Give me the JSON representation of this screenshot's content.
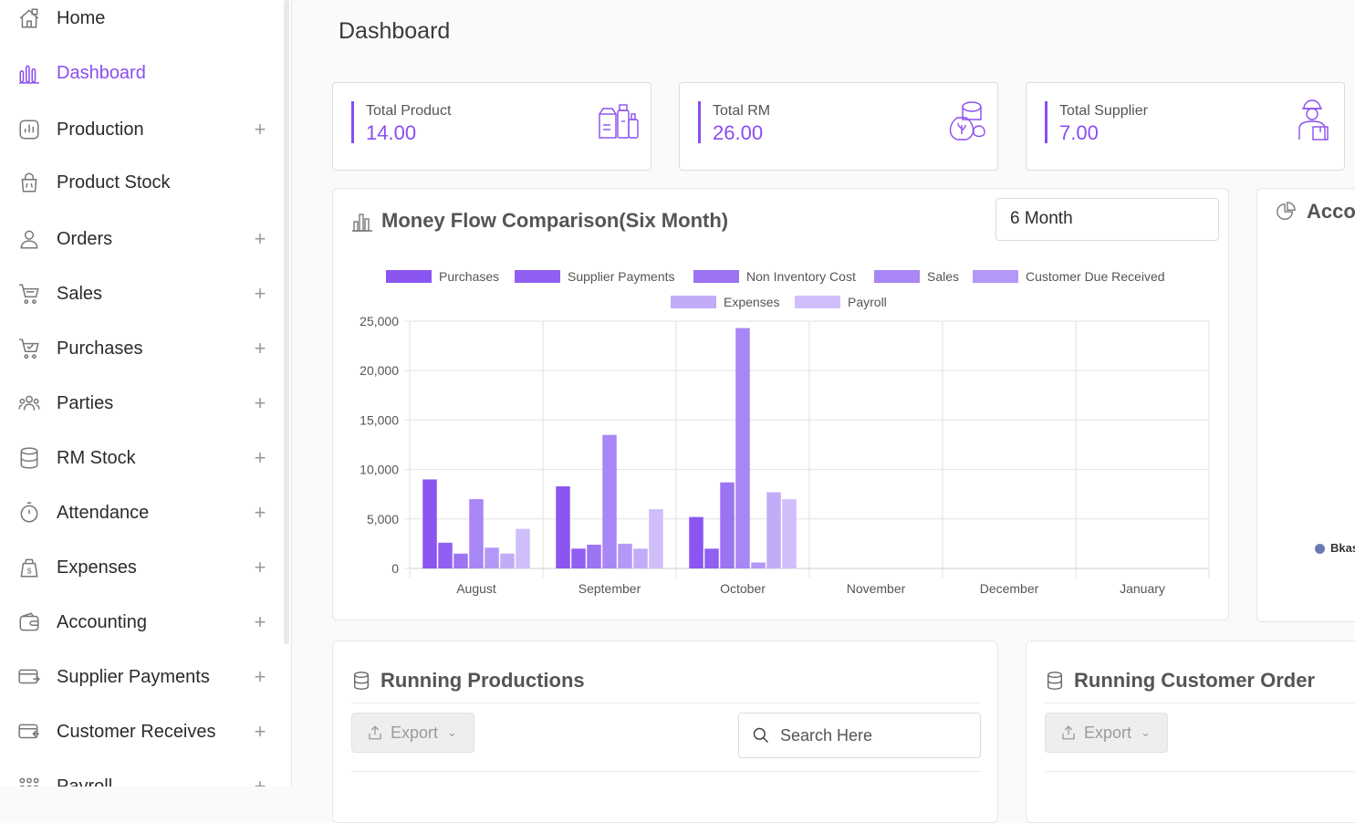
{
  "sidebar": {
    "items": [
      {
        "label": "Home",
        "icon": "home-icon",
        "expandable": false,
        "active": false
      },
      {
        "label": "Dashboard",
        "icon": "chart-icon",
        "expandable": false,
        "active": true
      },
      {
        "label": "Production",
        "icon": "production-icon",
        "expandable": true,
        "active": false
      },
      {
        "label": "Product Stock",
        "icon": "bag-icon",
        "expandable": false,
        "active": false
      },
      {
        "label": "Orders",
        "icon": "user-icon",
        "expandable": true,
        "active": false
      },
      {
        "label": "Sales",
        "icon": "cart-icon",
        "expandable": true,
        "active": false
      },
      {
        "label": "Purchases",
        "icon": "cart-check-icon",
        "expandable": true,
        "active": false
      },
      {
        "label": "Parties",
        "icon": "group-icon",
        "expandable": true,
        "active": false
      },
      {
        "label": "RM Stock",
        "icon": "database-icon",
        "expandable": true,
        "active": false
      },
      {
        "label": "Attendance",
        "icon": "stopwatch-icon",
        "expandable": true,
        "active": false
      },
      {
        "label": "Expenses",
        "icon": "money-bag-icon",
        "expandable": true,
        "active": false
      },
      {
        "label": "Accounting",
        "icon": "wallet-icon",
        "expandable": true,
        "active": false
      },
      {
        "label": "Supplier Payments",
        "icon": "card-out-icon",
        "expandable": true,
        "active": false
      },
      {
        "label": "Customer Receives",
        "icon": "card-in-icon",
        "expandable": true,
        "active": false
      },
      {
        "label": "Payroll",
        "icon": "payroll-icon",
        "expandable": true,
        "active": false
      }
    ]
  },
  "header": {
    "title": "Dashboard"
  },
  "stats": [
    {
      "label": "Total Product",
      "value": "14.00",
      "icon": "products-icon"
    },
    {
      "label": "Total RM",
      "value": "26.00",
      "icon": "raw-material-icon"
    },
    {
      "label": "Total Supplier",
      "value": "7.00",
      "icon": "supplier-icon"
    }
  ],
  "money_flow": {
    "title": "Money Flow Comparison(Six Month)",
    "period_select": "6 Month"
  },
  "accounts_panel": {
    "title": "Accou",
    "legend_label": "Bkas"
  },
  "chart_data": {
    "type": "bar",
    "categories": [
      "August",
      "September",
      "October",
      "November",
      "December",
      "January"
    ],
    "series": [
      {
        "name": "Purchases",
        "values": [
          9000,
          8300,
          5200,
          0,
          0,
          0
        ],
        "color": "#8b55f1"
      },
      {
        "name": "Supplier Payments",
        "values": [
          2600,
          2000,
          2000,
          0,
          0,
          0
        ],
        "color": "#9160f2"
      },
      {
        "name": "Non Inventory Cost",
        "values": [
          1500,
          2400,
          8700,
          0,
          0,
          0
        ],
        "color": "#9b73f3"
      },
      {
        "name": "Sales",
        "values": [
          7000,
          13500,
          24300,
          0,
          0,
          0
        ],
        "color": "#a886f5"
      },
      {
        "name": "Customer Due Received",
        "values": [
          2100,
          2500,
          600,
          0,
          0,
          0
        ],
        "color": "#b597f7"
      },
      {
        "name": "Expenses",
        "values": [
          1500,
          2000,
          7700,
          0,
          0,
          0
        ],
        "color": "#c2acf8"
      },
      {
        "name": "Payroll",
        "values": [
          4000,
          6000,
          7000,
          0,
          0,
          0
        ],
        "color": "#d0befa"
      }
    ],
    "ylim": [
      0,
      25000
    ],
    "yticks": [
      "0",
      "5,000",
      "10,000",
      "15,000",
      "20,000",
      "25,000"
    ],
    "grid": true,
    "legend": "top"
  },
  "running_productions": {
    "title": "Running Productions",
    "export_label": "Export",
    "search_placeholder": "Search Here"
  },
  "running_orders": {
    "title": "Running Customer Order",
    "export_label": "Export"
  },
  "colors": {
    "accent": "#8a4df0"
  }
}
